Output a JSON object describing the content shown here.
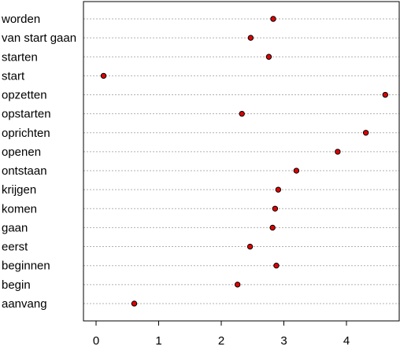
{
  "chart_data": {
    "type": "scatter",
    "title": "",
    "xlabel": "",
    "ylabel": "",
    "xlim": [
      0,
      4.75
    ],
    "xticks": [
      0,
      1,
      2,
      3,
      4
    ],
    "grid": "horizontal dotted",
    "point_color": "#e00000",
    "point_outline": "#000000",
    "points": [
      {
        "label": "worden",
        "value": 2.83
      },
      {
        "label": "van start gaan",
        "value": 2.47
      },
      {
        "label": "starten",
        "value": 2.76
      },
      {
        "label": "start",
        "value": 0.12
      },
      {
        "label": "opzetten",
        "value": 4.62
      },
      {
        "label": "opstarten",
        "value": 2.33
      },
      {
        "label": "oprichten",
        "value": 4.31
      },
      {
        "label": "openen",
        "value": 3.86
      },
      {
        "label": "ontstaan",
        "value": 3.2
      },
      {
        "label": "krijgen",
        "value": 2.91
      },
      {
        "label": "komen",
        "value": 2.86
      },
      {
        "label": "gaan",
        "value": 2.82
      },
      {
        "label": "eerst",
        "value": 2.46
      },
      {
        "label": "beginnen",
        "value": 2.88
      },
      {
        "label": "begin",
        "value": 2.26
      },
      {
        "label": "aanvang",
        "value": 0.61
      }
    ]
  }
}
